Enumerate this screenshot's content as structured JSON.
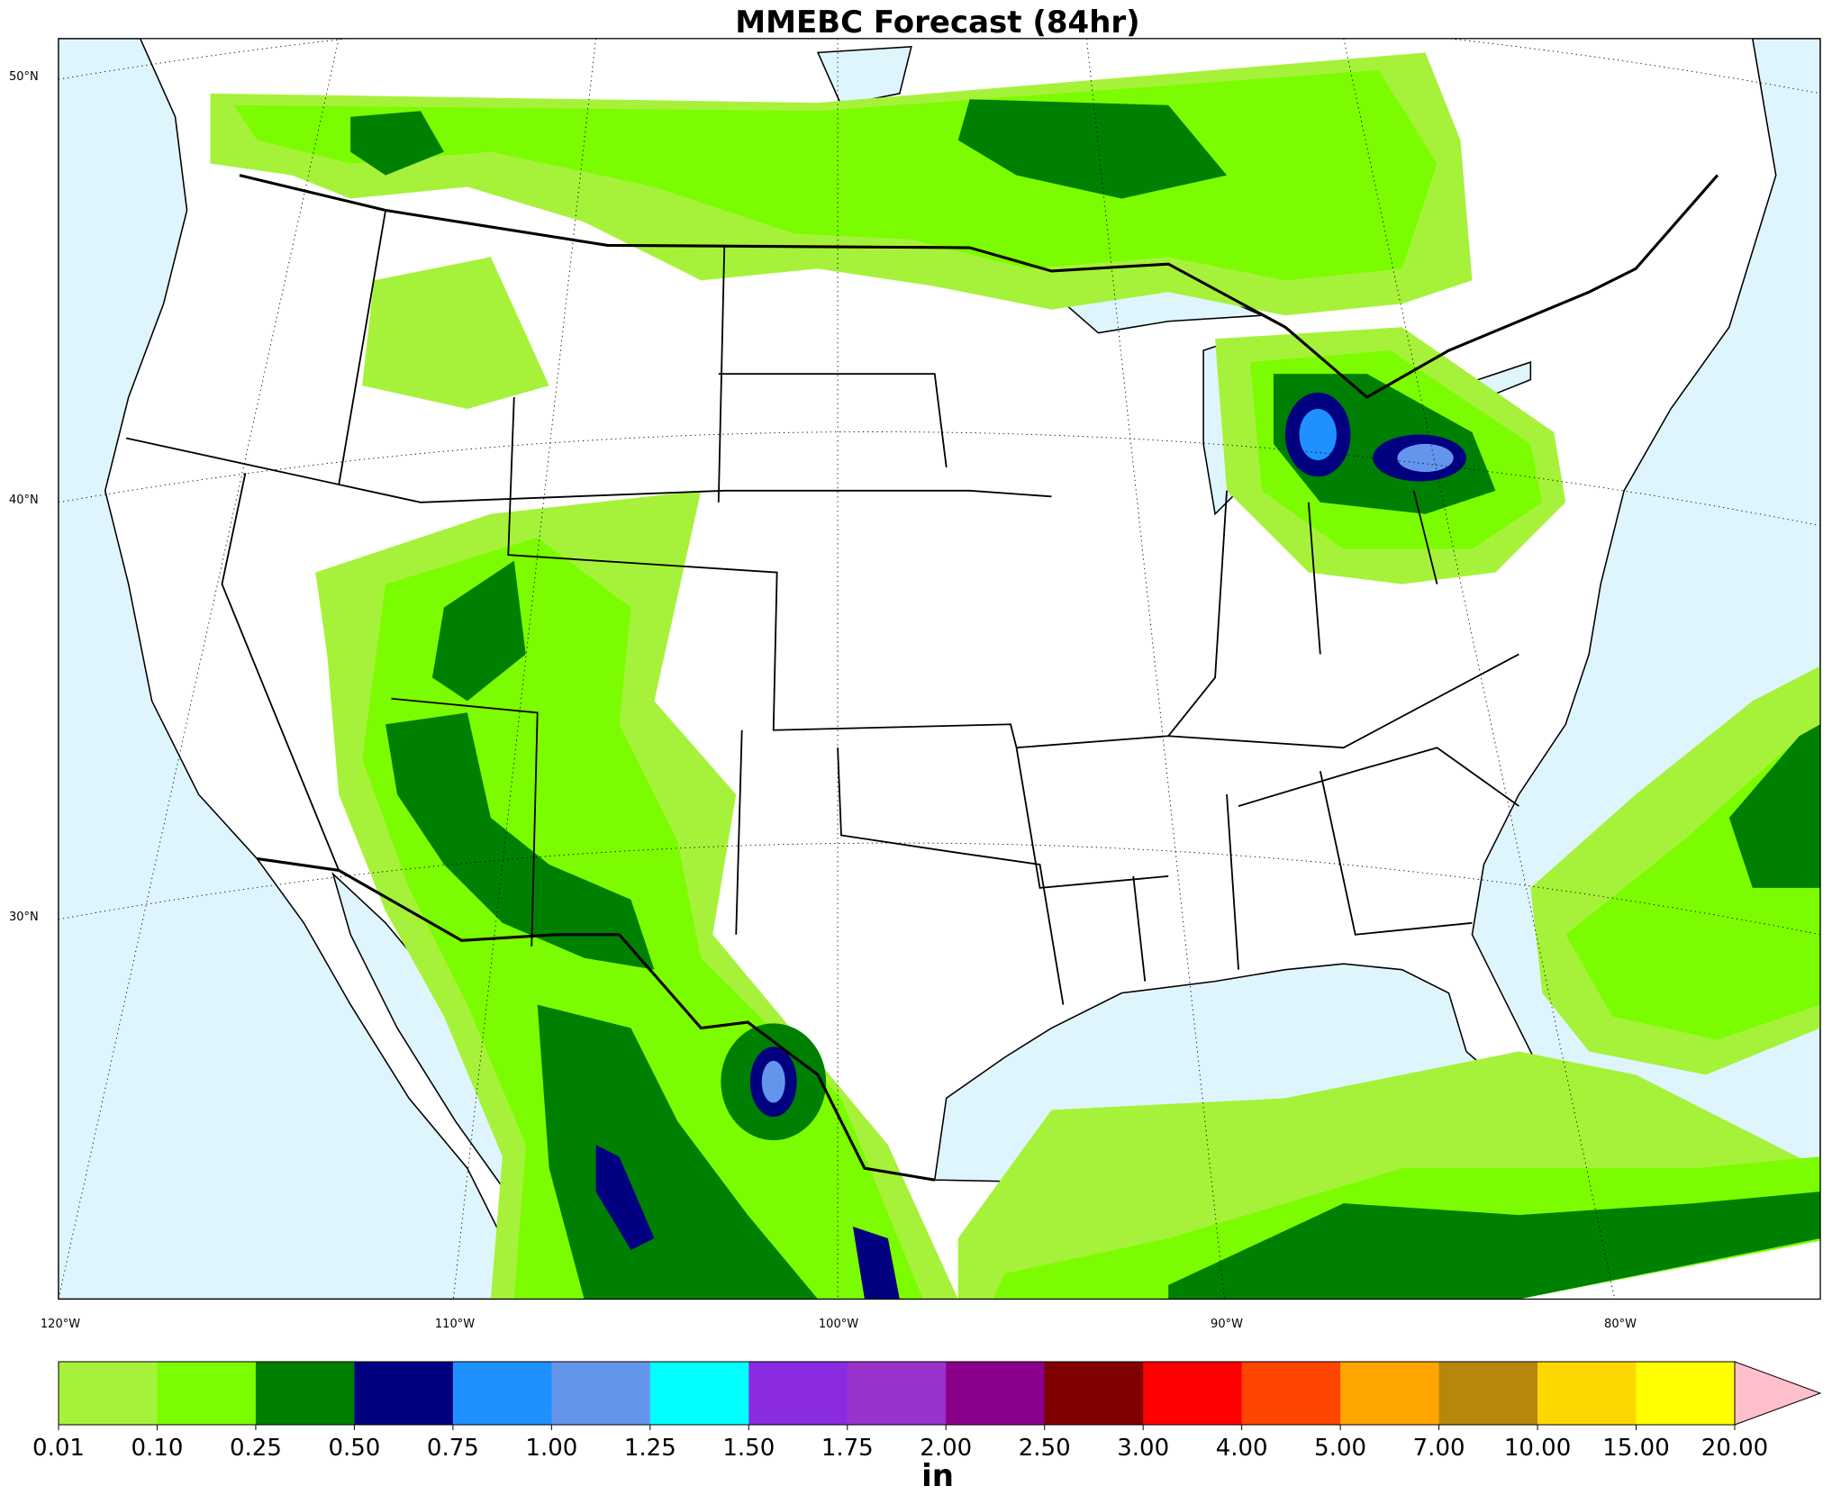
{
  "title": "MMEBC Forecast (84hr)",
  "lat_labels": [
    "50°N",
    "40°N",
    "30°N"
  ],
  "lon_labels": [
    "120°W",
    "110°W",
    "100°W",
    "90°W",
    "80°W"
  ],
  "colorbar": {
    "labels": [
      "0.01",
      "0.10",
      "0.25",
      "0.50",
      "0.75",
      "1.00",
      "1.25",
      "1.50",
      "1.75",
      "2.00",
      "2.50",
      "3.00",
      "4.00",
      "5.00",
      "7.00",
      "10.00",
      "15.00",
      "20.00"
    ],
    "colors": [
      "#a6f23a",
      "#7cfc00",
      "#008000",
      "#000080",
      "#1e90ff",
      "#6495ed",
      "#00ffff",
      "#8a2be2",
      "#9932cc",
      "#8b008b",
      "#800000",
      "#ff0000",
      "#ff4500",
      "#ffa500",
      "#b8860b",
      "#ffd700",
      "#ffff00"
    ],
    "extend_color": "#ffc0cb",
    "unit": "in"
  }
}
